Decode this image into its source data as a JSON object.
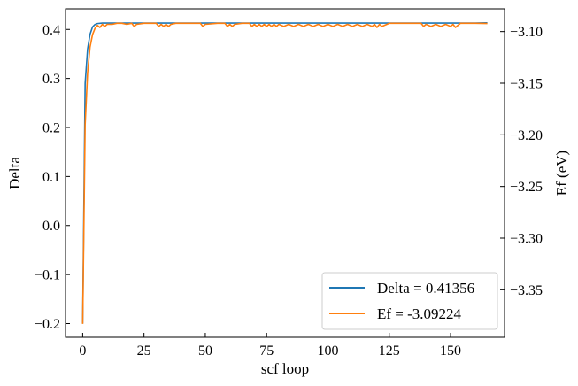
{
  "chart_data": {
    "type": "line",
    "xlabel": "scf loop",
    "ylabel_left": "Delta",
    "ylabel_right": "Ef (eV)",
    "xlim": [
      -7,
      172
    ],
    "ylim_left": [
      -0.228,
      0.442
    ],
    "ylim_right": [
      -3.396,
      -3.078
    ],
    "xticks": [
      0,
      25,
      50,
      75,
      100,
      125,
      150
    ],
    "xtick_labels": [
      "0",
      "25",
      "50",
      "75",
      "100",
      "125",
      "150"
    ],
    "yticks_left": [
      -0.2,
      -0.1,
      0.0,
      0.1,
      0.2,
      0.3,
      0.4
    ],
    "ytick_labels_left": [
      "−0.2",
      "−0.1",
      "0.0",
      "0.1",
      "0.2",
      "0.3",
      "0.4"
    ],
    "yticks_right": [
      -3.35,
      -3.3,
      -3.25,
      -3.2,
      -3.15,
      -3.1
    ],
    "ytick_labels_right": [
      "−3.35",
      "−3.30",
      "−3.25",
      "−3.20",
      "−3.15",
      "−3.10"
    ],
    "grid": false,
    "legend_position": "bottom-right",
    "series": [
      {
        "name": "Delta = 0.41356",
        "axis": "left",
        "color": "#1f77b4",
        "x": [
          0,
          1,
          2,
          3,
          4,
          5,
          6,
          8,
          10,
          15,
          20,
          25,
          30,
          35,
          40,
          45,
          50,
          55,
          60,
          65,
          70,
          75,
          80,
          85,
          90,
          95,
          100,
          105,
          110,
          115,
          120,
          125,
          130,
          135,
          140,
          145,
          150,
          155,
          160,
          165
        ],
        "y": [
          -0.2,
          0.29,
          0.36,
          0.39,
          0.405,
          0.41,
          0.412,
          0.413,
          0.413,
          0.413,
          0.413,
          0.413,
          0.413,
          0.413,
          0.413,
          0.413,
          0.413,
          0.413,
          0.413,
          0.413,
          0.413,
          0.413,
          0.413,
          0.413,
          0.413,
          0.413,
          0.413,
          0.413,
          0.413,
          0.413,
          0.413,
          0.413,
          0.413,
          0.413,
          0.413,
          0.413,
          0.413,
          0.413,
          0.413,
          0.41356
        ]
      },
      {
        "name": "Ef = -3.09224",
        "axis": "right",
        "color": "#ff7f0e",
        "x": [
          0,
          1,
          2,
          3,
          4,
          5,
          6,
          7,
          8,
          9,
          10,
          12,
          14,
          16,
          18,
          20,
          21,
          22,
          25,
          28,
          30,
          31,
          32,
          33,
          34,
          35,
          36,
          38,
          40,
          45,
          48,
          49,
          50,
          55,
          58,
          59,
          60,
          61,
          62,
          65,
          68,
          69,
          70,
          71,
          72,
          73,
          74,
          75,
          76,
          77,
          78,
          79,
          80,
          82,
          84,
          86,
          88,
          90,
          92,
          94,
          96,
          98,
          100,
          102,
          104,
          106,
          108,
          110,
          112,
          114,
          116,
          118,
          119,
          120,
          121,
          122,
          125,
          128,
          130,
          135,
          138,
          139,
          140,
          142,
          144,
          146,
          148,
          150,
          151,
          152,
          153,
          154,
          156,
          158,
          160,
          165
        ],
        "y": [
          -3.383,
          -3.19,
          -3.14,
          -3.115,
          -3.103,
          -3.097,
          -3.094,
          -3.096,
          -3.093,
          -3.095,
          -3.093,
          -3.093,
          -3.092,
          -3.092,
          -3.093,
          -3.092,
          -3.095,
          -3.093,
          -3.092,
          -3.092,
          -3.092,
          -3.095,
          -3.093,
          -3.095,
          -3.093,
          -3.095,
          -3.093,
          -3.092,
          -3.092,
          -3.092,
          -3.092,
          -3.095,
          -3.093,
          -3.092,
          -3.092,
          -3.095,
          -3.093,
          -3.095,
          -3.093,
          -3.092,
          -3.092,
          -3.095,
          -3.093,
          -3.095,
          -3.093,
          -3.095,
          -3.093,
          -3.095,
          -3.093,
          -3.095,
          -3.093,
          -3.095,
          -3.093,
          -3.095,
          -3.093,
          -3.095,
          -3.093,
          -3.095,
          -3.093,
          -3.095,
          -3.093,
          -3.095,
          -3.093,
          -3.095,
          -3.093,
          -3.095,
          -3.093,
          -3.095,
          -3.093,
          -3.095,
          -3.093,
          -3.095,
          -3.093,
          -3.096,
          -3.093,
          -3.095,
          -3.092,
          -3.092,
          -3.092,
          -3.092,
          -3.092,
          -3.095,
          -3.093,
          -3.095,
          -3.093,
          -3.095,
          -3.093,
          -3.095,
          -3.093,
          -3.096,
          -3.094,
          -3.092,
          -3.092,
          -3.092,
          -3.092,
          -3.09224
        ]
      }
    ]
  }
}
